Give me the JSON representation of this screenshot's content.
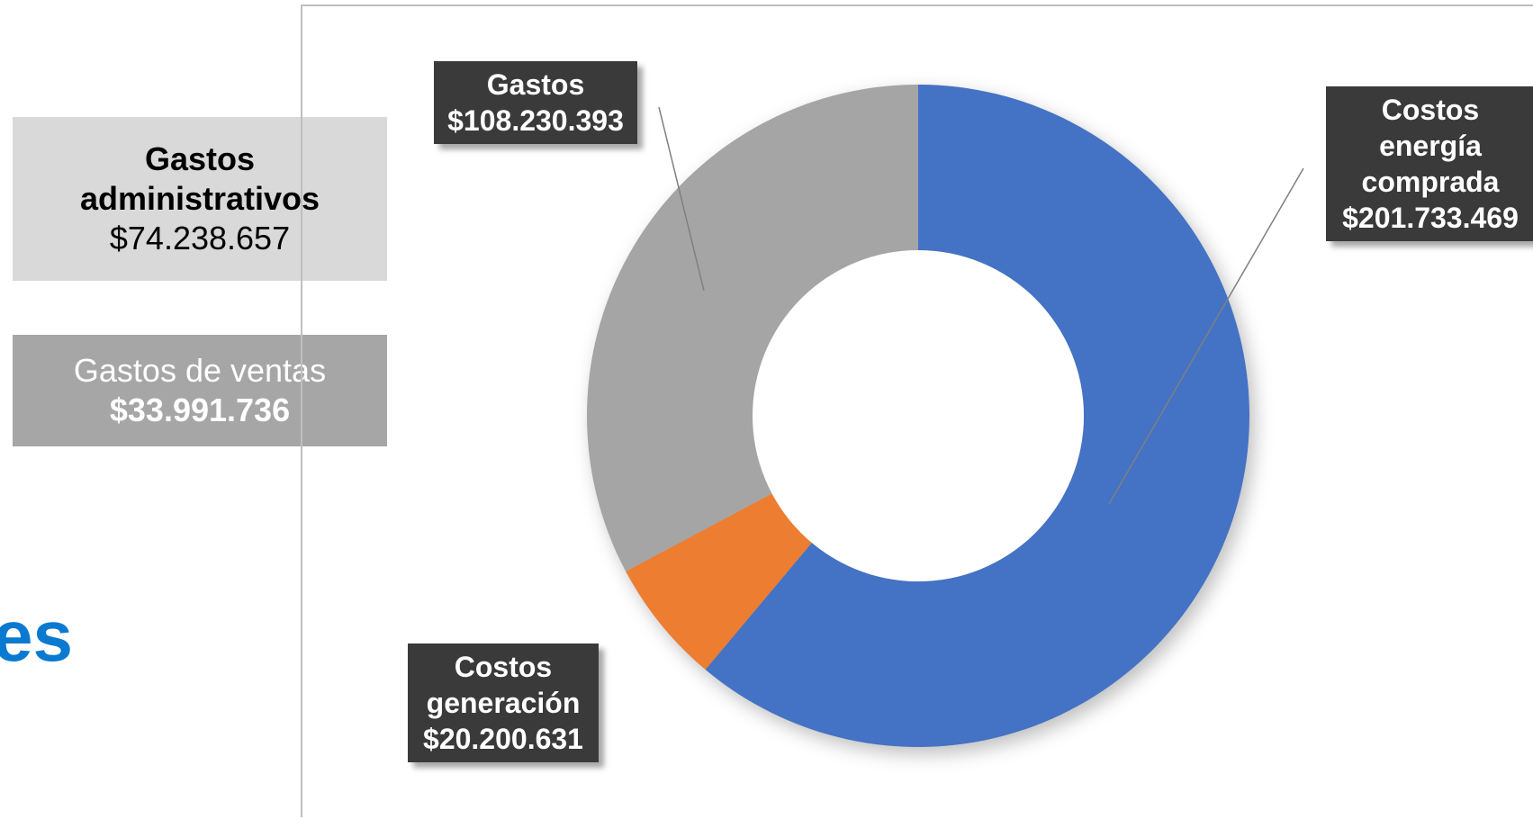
{
  "side_boxes": {
    "admin": {
      "title_line1": "Gastos",
      "title_line2": "administrativos",
      "value": "$74.238.657"
    },
    "ventas": {
      "title": "Gastos de ventas",
      "value": "$33.991.736"
    }
  },
  "partial_heading": "es",
  "colors": {
    "blue": "#4472c4",
    "orange": "#ed7d31",
    "gray": "#a5a5a5",
    "label_bg": "#3a3a3a",
    "heading_blue": "#0a7ad0"
  },
  "chart_data": {
    "type": "pie",
    "donut": true,
    "slices": [
      {
        "name": "Costos energía comprada",
        "value": 201733469,
        "color": "#4472c4"
      },
      {
        "name": "Costos generación",
        "value": 20200631,
        "color": "#ed7d31"
      },
      {
        "name": "Gastos",
        "value": 108230393,
        "color": "#a5a5a5"
      }
    ],
    "labels": {
      "compra": {
        "l1": "Costos",
        "l2": "energía",
        "l3": "comprada",
        "value": "$201.733.469"
      },
      "generacion": {
        "l1": "Costos",
        "l2": "generación",
        "value": "$20.200.631"
      },
      "gastos": {
        "l1": "Gastos",
        "value": "$108.230.393"
      }
    }
  }
}
